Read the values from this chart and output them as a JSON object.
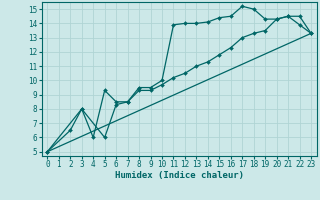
{
  "title": "",
  "xlabel": "Humidex (Indice chaleur)",
  "background_color": "#cce8e8",
  "grid_color": "#b0d4d4",
  "line_color": "#006666",
  "xlim": [
    -0.5,
    23.5
  ],
  "ylim": [
    4.7,
    15.5
  ],
  "yticks": [
    5,
    6,
    7,
    8,
    9,
    10,
    11,
    12,
    13,
    14,
    15
  ],
  "xticks": [
    0,
    1,
    2,
    3,
    4,
    5,
    6,
    7,
    8,
    9,
    10,
    11,
    12,
    13,
    14,
    15,
    16,
    17,
    18,
    19,
    20,
    21,
    22,
    23
  ],
  "series1_x": [
    0,
    2,
    3,
    4,
    5,
    6,
    7,
    8,
    9,
    10,
    11,
    12,
    13,
    14,
    15,
    16,
    17,
    18,
    19,
    20,
    21,
    22,
    23
  ],
  "series1_y": [
    5.0,
    6.5,
    8.0,
    6.0,
    9.3,
    8.5,
    8.5,
    9.5,
    9.5,
    10.0,
    13.9,
    14.0,
    14.0,
    14.1,
    14.4,
    14.5,
    15.2,
    15.0,
    14.3,
    14.3,
    14.5,
    13.9,
    13.3
  ],
  "series2_x": [
    0,
    3,
    5,
    6,
    7,
    8,
    9,
    10,
    11,
    12,
    13,
    14,
    15,
    16,
    17,
    18,
    19,
    20,
    21,
    22,
    23
  ],
  "series2_y": [
    5.0,
    8.0,
    6.0,
    8.3,
    8.5,
    9.3,
    9.3,
    9.7,
    10.2,
    10.5,
    11.0,
    11.3,
    11.8,
    12.3,
    13.0,
    13.3,
    13.5,
    14.3,
    14.5,
    14.5,
    13.3
  ],
  "series3_x": [
    0,
    23
  ],
  "series3_y": [
    5.0,
    13.3
  ]
}
